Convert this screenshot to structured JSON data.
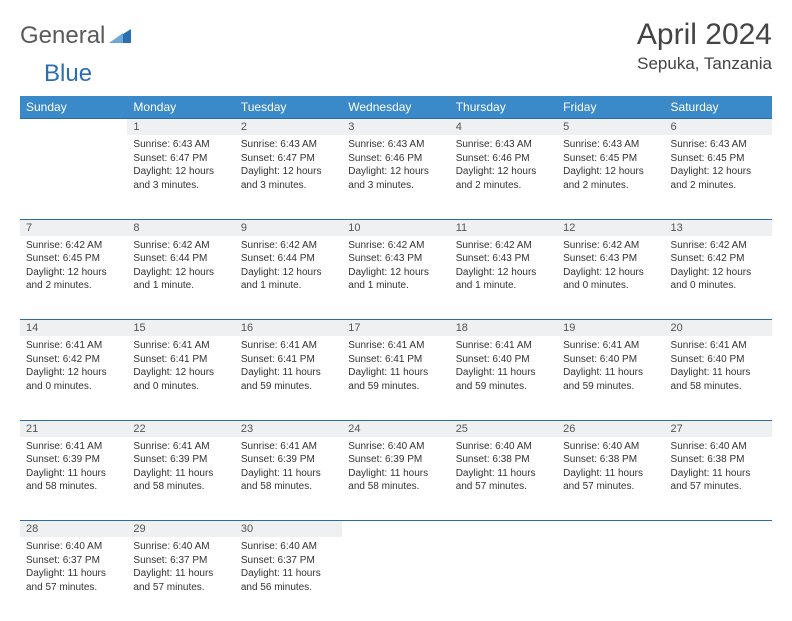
{
  "brand": {
    "part1": "General",
    "part2": "Blue"
  },
  "title": "April 2024",
  "location": "Sepuka, Tanzania",
  "colors": {
    "header_bg": "#3a8ac9",
    "header_text": "#ffffff",
    "daynum_bg": "#eef0f1",
    "border": "#2f6aa3",
    "body_text": "#333333",
    "title_text": "#444444",
    "logo_gray": "#5a5a5a",
    "logo_blue": "#2a6fb5"
  },
  "weekdays": [
    "Sunday",
    "Monday",
    "Tuesday",
    "Wednesday",
    "Thursday",
    "Friday",
    "Saturday"
  ],
  "weeks": [
    {
      "nums": [
        "",
        "1",
        "2",
        "3",
        "4",
        "5",
        "6"
      ],
      "cells": [
        "",
        "Sunrise: 6:43 AM\nSunset: 6:47 PM\nDaylight: 12 hours and 3 minutes.",
        "Sunrise: 6:43 AM\nSunset: 6:47 PM\nDaylight: 12 hours and 3 minutes.",
        "Sunrise: 6:43 AM\nSunset: 6:46 PM\nDaylight: 12 hours and 3 minutes.",
        "Sunrise: 6:43 AM\nSunset: 6:46 PM\nDaylight: 12 hours and 2 minutes.",
        "Sunrise: 6:43 AM\nSunset: 6:45 PM\nDaylight: 12 hours and 2 minutes.",
        "Sunrise: 6:43 AM\nSunset: 6:45 PM\nDaylight: 12 hours and 2 minutes."
      ]
    },
    {
      "nums": [
        "7",
        "8",
        "9",
        "10",
        "11",
        "12",
        "13"
      ],
      "cells": [
        "Sunrise: 6:42 AM\nSunset: 6:45 PM\nDaylight: 12 hours and 2 minutes.",
        "Sunrise: 6:42 AM\nSunset: 6:44 PM\nDaylight: 12 hours and 1 minute.",
        "Sunrise: 6:42 AM\nSunset: 6:44 PM\nDaylight: 12 hours and 1 minute.",
        "Sunrise: 6:42 AM\nSunset: 6:43 PM\nDaylight: 12 hours and 1 minute.",
        "Sunrise: 6:42 AM\nSunset: 6:43 PM\nDaylight: 12 hours and 1 minute.",
        "Sunrise: 6:42 AM\nSunset: 6:43 PM\nDaylight: 12 hours and 0 minutes.",
        "Sunrise: 6:42 AM\nSunset: 6:42 PM\nDaylight: 12 hours and 0 minutes."
      ]
    },
    {
      "nums": [
        "14",
        "15",
        "16",
        "17",
        "18",
        "19",
        "20"
      ],
      "cells": [
        "Sunrise: 6:41 AM\nSunset: 6:42 PM\nDaylight: 12 hours and 0 minutes.",
        "Sunrise: 6:41 AM\nSunset: 6:41 PM\nDaylight: 12 hours and 0 minutes.",
        "Sunrise: 6:41 AM\nSunset: 6:41 PM\nDaylight: 11 hours and 59 minutes.",
        "Sunrise: 6:41 AM\nSunset: 6:41 PM\nDaylight: 11 hours and 59 minutes.",
        "Sunrise: 6:41 AM\nSunset: 6:40 PM\nDaylight: 11 hours and 59 minutes.",
        "Sunrise: 6:41 AM\nSunset: 6:40 PM\nDaylight: 11 hours and 59 minutes.",
        "Sunrise: 6:41 AM\nSunset: 6:40 PM\nDaylight: 11 hours and 58 minutes."
      ]
    },
    {
      "nums": [
        "21",
        "22",
        "23",
        "24",
        "25",
        "26",
        "27"
      ],
      "cells": [
        "Sunrise: 6:41 AM\nSunset: 6:39 PM\nDaylight: 11 hours and 58 minutes.",
        "Sunrise: 6:41 AM\nSunset: 6:39 PM\nDaylight: 11 hours and 58 minutes.",
        "Sunrise: 6:41 AM\nSunset: 6:39 PM\nDaylight: 11 hours and 58 minutes.",
        "Sunrise: 6:40 AM\nSunset: 6:39 PM\nDaylight: 11 hours and 58 minutes.",
        "Sunrise: 6:40 AM\nSunset: 6:38 PM\nDaylight: 11 hours and 57 minutes.",
        "Sunrise: 6:40 AM\nSunset: 6:38 PM\nDaylight: 11 hours and 57 minutes.",
        "Sunrise: 6:40 AM\nSunset: 6:38 PM\nDaylight: 11 hours and 57 minutes."
      ]
    },
    {
      "nums": [
        "28",
        "29",
        "30",
        "",
        "",
        "",
        ""
      ],
      "cells": [
        "Sunrise: 6:40 AM\nSunset: 6:37 PM\nDaylight: 11 hours and 57 minutes.",
        "Sunrise: 6:40 AM\nSunset: 6:37 PM\nDaylight: 11 hours and 57 minutes.",
        "Sunrise: 6:40 AM\nSunset: 6:37 PM\nDaylight: 11 hours and 56 minutes.",
        "",
        "",
        "",
        ""
      ]
    }
  ]
}
